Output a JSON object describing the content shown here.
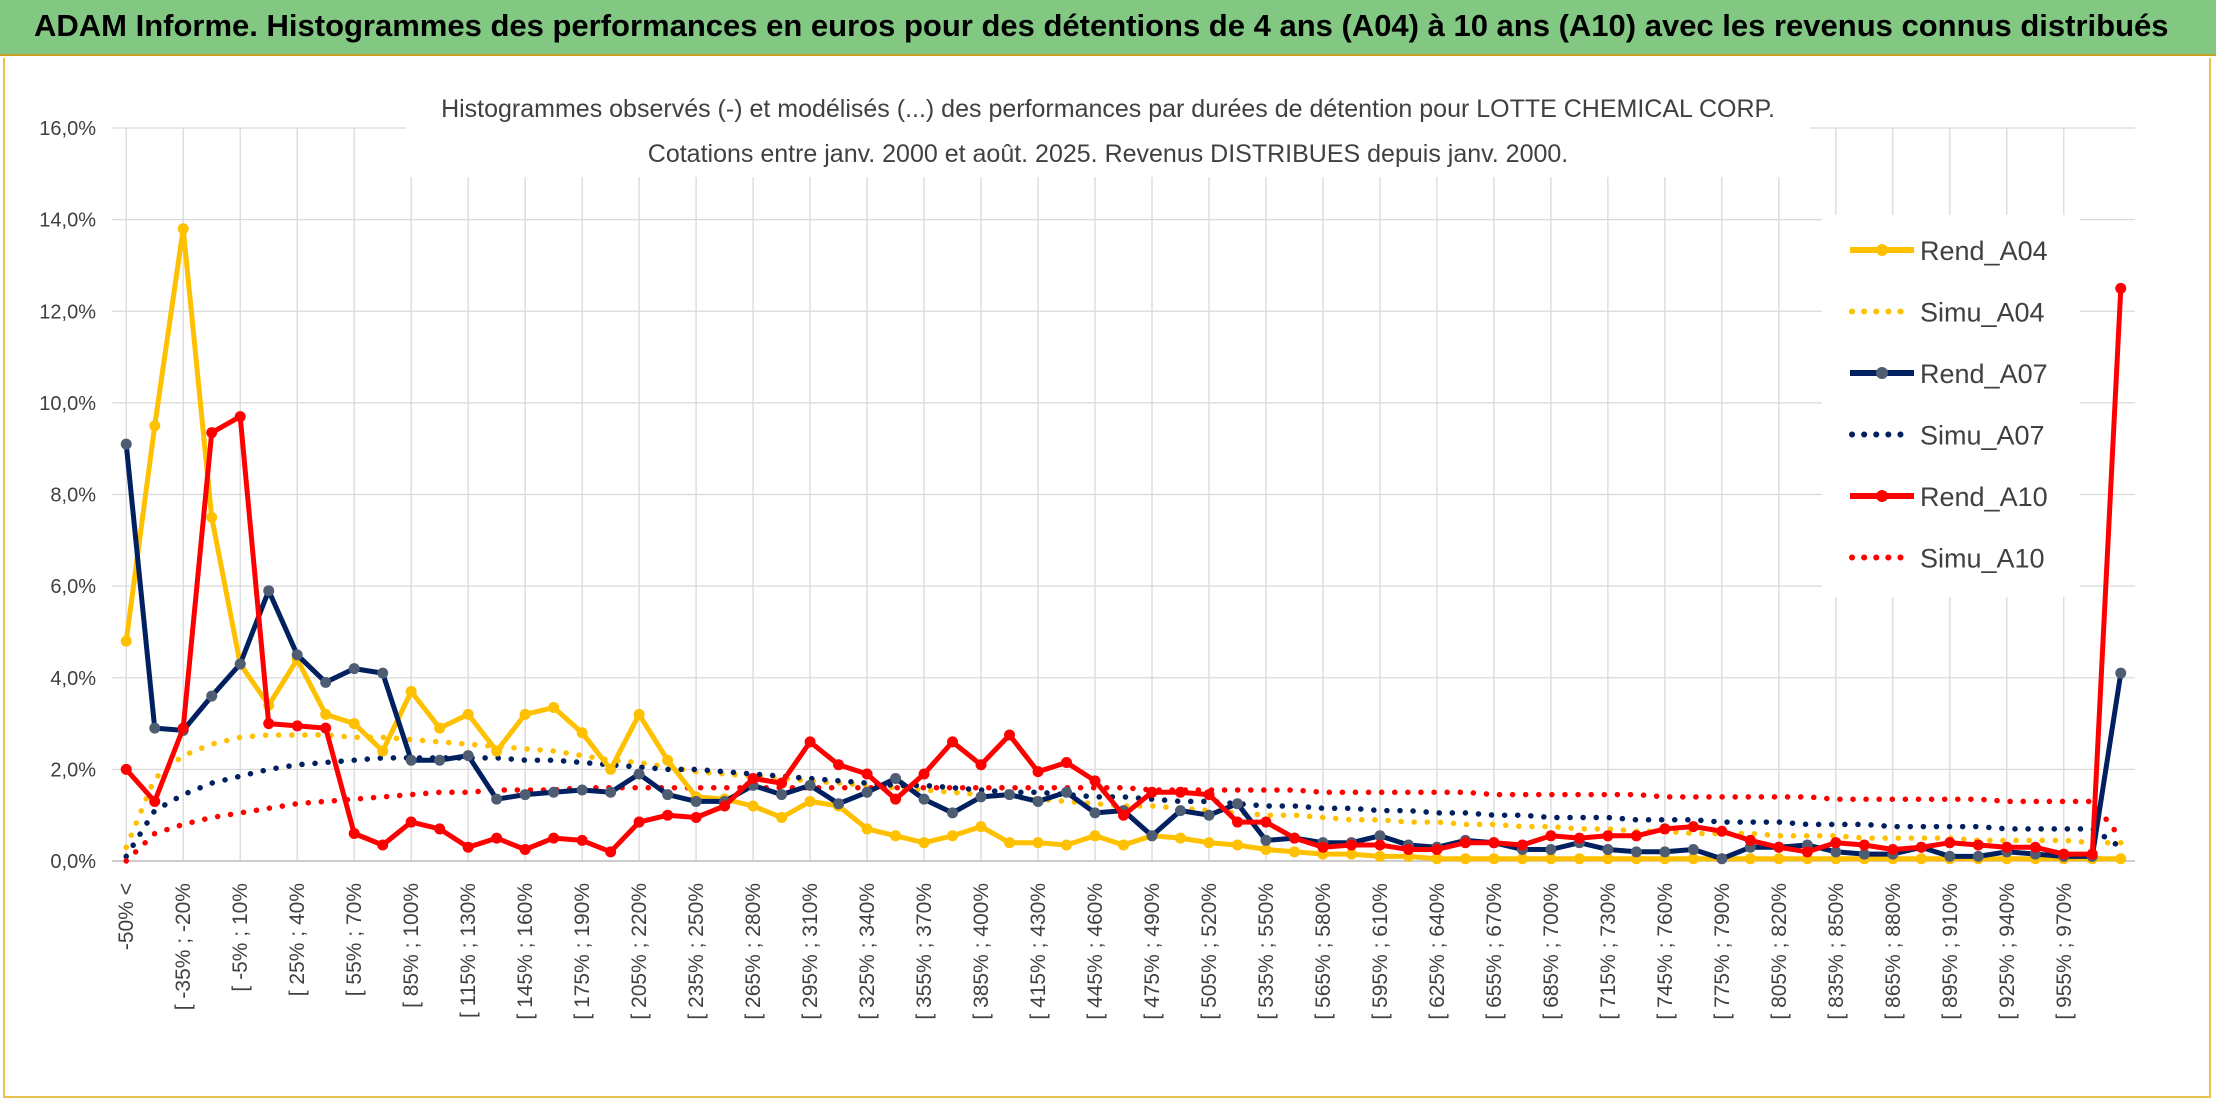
{
  "banner": {
    "title": "ADAM Informe. Histogrammes des performances en euros pour des détentions de 4 ans (A04) à 10 ans (A10) avec les revenus connus distribués"
  },
  "chart_data": {
    "type": "line",
    "title": "Histogrammes observés (-) et modélisés (...) des performances par durées de détention pour LOTTE CHEMICAL CORP.",
    "subtitle": "Cotations entre janv. 2000 et août. 2025. Revenus DISTRIBUES depuis janv. 2000.",
    "xlabel": "",
    "ylabel": "",
    "ylim": [
      0,
      16
    ],
    "y_ticks": [
      "0,0%",
      "2,0%",
      "4,0%",
      "6,0%",
      "8,0%",
      "10,0%",
      "12,0%",
      "14,0%",
      "16,0%"
    ],
    "grid": true,
    "legend_position": "right",
    "x_tick_labels": [
      "-50% <",
      "[ -35% ; -20%",
      "[ -5% ; 10%",
      "[ 25% ; 40%",
      "[ 55% ; 70%",
      "[ 85% ; 100%",
      "[ 115% ; 130%",
      "[ 145% ; 160%",
      "[ 175% ; 190%",
      "[ 205% ; 220%",
      "[ 235% ; 250%",
      "[ 265% ; 280%",
      "[ 295% ; 310%",
      "[ 325% ; 340%",
      "[ 355% ; 370%",
      "[ 385% ; 400%",
      "[ 415% ; 430%",
      "[ 445% ; 460%",
      "[ 475% ; 490%",
      "[ 505% ; 520%",
      "[ 535% ; 550%",
      "[ 565% ; 580%",
      "[ 595% ; 610%",
      "[ 625% ; 640%",
      "[ 655% ; 670%",
      "[ 685% ; 700%",
      "[ 715% ; 730%",
      "[ 745% ; 760%",
      "[ 775% ; 790%",
      "[ 805% ; 820%",
      "[ 835% ; 850%",
      "[ 865% ; 880%",
      "[ 895% ; 910%",
      "[ 925% ; 940%",
      "[ 955% ; 970%"
    ],
    "series": [
      {
        "name": "Rend_A04",
        "color": "#FFC000",
        "style": "solid",
        "values": [
          4.8,
          9.5,
          13.8,
          7.5,
          4.3,
          3.4,
          4.4,
          3.2,
          3.0,
          2.4,
          3.7,
          2.9,
          3.2,
          2.4,
          3.2,
          3.35,
          2.8,
          2.0,
          3.2,
          2.2,
          1.4,
          1.35,
          1.2,
          0.95,
          1.3,
          1.2,
          0.7,
          0.55,
          0.4,
          0.55,
          0.75,
          0.4,
          0.4,
          0.35,
          0.55,
          0.35,
          0.55,
          0.5,
          0.4,
          0.35,
          0.25,
          0.2,
          0.15,
          0.15,
          0.1,
          0.1,
          0.05,
          0.05,
          0.05,
          0.05,
          0.05,
          0.05,
          0.05,
          0.05,
          0.05,
          0.05,
          0.05,
          0.05,
          0.05,
          0.05,
          0.05,
          0.05,
          0.05,
          0.05,
          0.05,
          0.05,
          0.05,
          0.05,
          0.05,
          0.05,
          0.05
        ]
      },
      {
        "name": "Simu_A04",
        "color": "#FFC000",
        "style": "dotted",
        "values": [
          0.3,
          1.8,
          2.3,
          2.55,
          2.7,
          2.75,
          2.75,
          2.75,
          2.7,
          2.7,
          2.65,
          2.6,
          2.55,
          2.5,
          2.45,
          2.4,
          2.3,
          2.2,
          2.15,
          2.05,
          1.95,
          1.9,
          1.85,
          1.8,
          1.75,
          1.7,
          1.65,
          1.6,
          1.55,
          1.5,
          1.45,
          1.4,
          1.35,
          1.3,
          1.25,
          1.2,
          1.2,
          1.15,
          1.1,
          1.05,
          1.0,
          1.0,
          0.95,
          0.9,
          0.9,
          0.85,
          0.85,
          0.8,
          0.8,
          0.75,
          0.75,
          0.7,
          0.7,
          0.65,
          0.65,
          0.6,
          0.6,
          0.6,
          0.55,
          0.55,
          0.55,
          0.5,
          0.5,
          0.5,
          0.5,
          0.45,
          0.45,
          0.45,
          0.45,
          0.4,
          0.4
        ]
      },
      {
        "name": "Rend_A07",
        "color": "#002060",
        "style": "solid",
        "values": [
          9.1,
          2.9,
          2.85,
          3.6,
          4.3,
          5.9,
          4.5,
          3.9,
          4.2,
          4.1,
          2.2,
          2.2,
          2.3,
          1.35,
          1.45,
          1.5,
          1.55,
          1.5,
          1.9,
          1.45,
          1.3,
          1.3,
          1.65,
          1.45,
          1.65,
          1.25,
          1.5,
          1.8,
          1.35,
          1.05,
          1.4,
          1.45,
          1.3,
          1.5,
          1.05,
          1.1,
          0.55,
          1.1,
          1.0,
          1.25,
          0.45,
          0.5,
          0.4,
          0.4,
          0.55,
          0.35,
          0.3,
          0.45,
          0.4,
          0.25,
          0.25,
          0.4,
          0.25,
          0.2,
          0.2,
          0.25,
          0.05,
          0.3,
          0.3,
          0.35,
          0.2,
          0.15,
          0.15,
          0.3,
          0.1,
          0.1,
          0.2,
          0.15,
          0.1,
          0.1,
          4.1
        ]
      },
      {
        "name": "Simu_A07",
        "color": "#002060",
        "style": "dotted",
        "values": [
          0.1,
          1.1,
          1.45,
          1.7,
          1.85,
          2.0,
          2.1,
          2.15,
          2.2,
          2.25,
          2.25,
          2.25,
          2.25,
          2.25,
          2.2,
          2.2,
          2.15,
          2.1,
          2.05,
          2.0,
          2.0,
          1.95,
          1.9,
          1.85,
          1.8,
          1.75,
          1.7,
          1.65,
          1.65,
          1.6,
          1.55,
          1.5,
          1.5,
          1.45,
          1.4,
          1.4,
          1.35,
          1.3,
          1.3,
          1.25,
          1.2,
          1.2,
          1.15,
          1.15,
          1.1,
          1.1,
          1.05,
          1.05,
          1.0,
          1.0,
          0.95,
          0.95,
          0.95,
          0.9,
          0.9,
          0.9,
          0.85,
          0.85,
          0.85,
          0.8,
          0.8,
          0.8,
          0.75,
          0.75,
          0.75,
          0.75,
          0.7,
          0.7,
          0.7,
          0.7,
          0.3
        ]
      },
      {
        "name": "Rend_A10",
        "color": "#FF0000",
        "style": "solid",
        "values": [
          2.0,
          1.3,
          2.9,
          9.35,
          9.7,
          3.0,
          2.95,
          2.9,
          0.6,
          0.35,
          0.85,
          0.7,
          0.3,
          0.5,
          0.25,
          0.5,
          0.45,
          0.2,
          0.85,
          1.0,
          0.95,
          1.2,
          1.8,
          1.7,
          2.6,
          2.1,
          1.9,
          1.35,
          1.9,
          2.6,
          2.1,
          2.75,
          1.95,
          2.15,
          1.75,
          1.0,
          1.5,
          1.5,
          1.45,
          0.85,
          0.85,
          0.5,
          0.3,
          0.35,
          0.35,
          0.25,
          0.25,
          0.4,
          0.4,
          0.35,
          0.55,
          0.5,
          0.55,
          0.55,
          0.7,
          0.75,
          0.65,
          0.45,
          0.3,
          0.2,
          0.4,
          0.35,
          0.25,
          0.3,
          0.4,
          0.35,
          0.3,
          0.3,
          0.15,
          0.15,
          12.5
        ]
      },
      {
        "name": "Simu_A10",
        "color": "#FF0000",
        "style": "dotted",
        "values": [
          0.0,
          0.6,
          0.8,
          0.95,
          1.05,
          1.15,
          1.25,
          1.3,
          1.35,
          1.4,
          1.45,
          1.5,
          1.5,
          1.55,
          1.55,
          1.55,
          1.6,
          1.6,
          1.6,
          1.6,
          1.6,
          1.6,
          1.6,
          1.6,
          1.6,
          1.6,
          1.6,
          1.6,
          1.6,
          1.6,
          1.6,
          1.6,
          1.6,
          1.6,
          1.6,
          1.6,
          1.55,
          1.55,
          1.55,
          1.55,
          1.55,
          1.55,
          1.5,
          1.5,
          1.5,
          1.5,
          1.5,
          1.5,
          1.45,
          1.45,
          1.45,
          1.45,
          1.45,
          1.45,
          1.4,
          1.4,
          1.4,
          1.4,
          1.4,
          1.4,
          1.35,
          1.35,
          1.35,
          1.35,
          1.35,
          1.35,
          1.3,
          1.3,
          1.3,
          1.3,
          0.5
        ]
      }
    ]
  }
}
